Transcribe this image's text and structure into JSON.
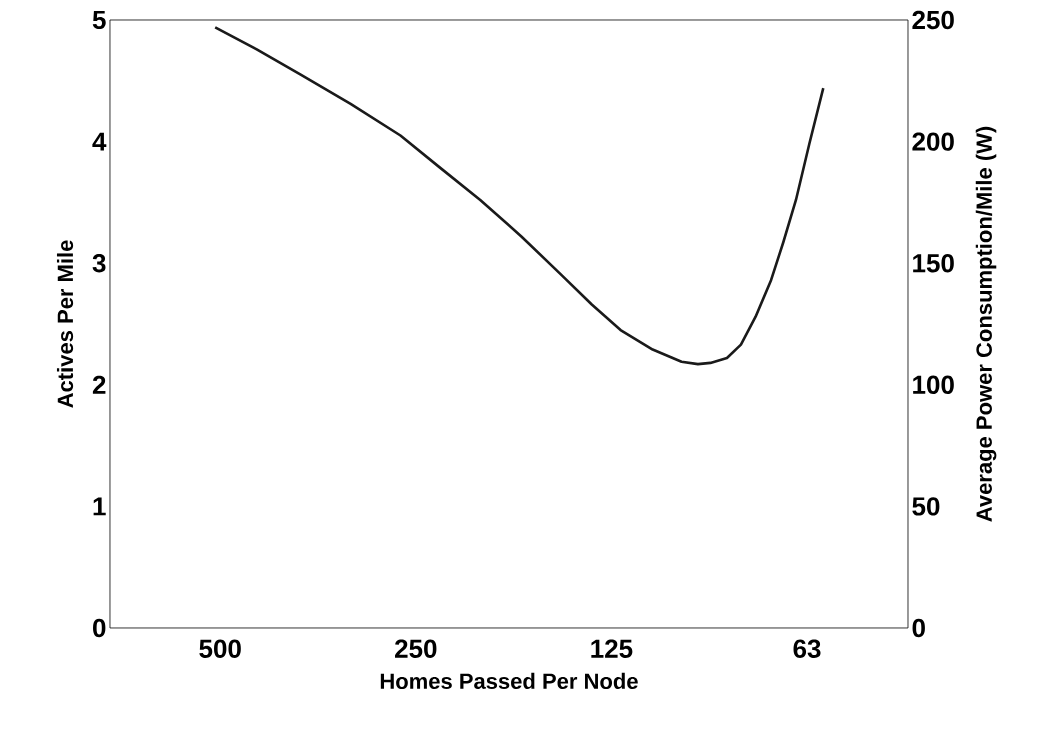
{
  "chart_data": {
    "type": "line",
    "xlabel": "Homes Passed Per Node",
    "ylabel": "Actives Per Mile",
    "y2label": "Average Power Consumption/Mile  (W)",
    "log": "x",
    "xlim": [
      739,
      43.7
    ],
    "xticks": [
      500,
      250,
      125,
      {
        "value": 62.5,
        "label": "63"
      }
    ],
    "ylim": [
      0,
      5
    ],
    "yticks": [
      0,
      1,
      2,
      3,
      4,
      5
    ],
    "y2lim": [
      0,
      250
    ],
    "y2ticks": [
      0,
      50,
      100,
      150,
      200,
      250
    ],
    "series": [
      {
        "color": "#1a1a1a",
        "x": [
          509,
          440,
          376,
          315,
          264,
          230,
          199,
          172,
          149,
          134,
          121,
          108,
          97.5,
          92,
          88,
          83,
          79,
          75,
          71,
          68,
          65,
          62,
          59
        ],
        "values": [
          4.94,
          4.76,
          4.55,
          4.31,
          4.05,
          3.79,
          3.52,
          3.22,
          2.9,
          2.66,
          2.45,
          2.29,
          2.19,
          2.17,
          2.18,
          2.22,
          2.33,
          2.56,
          2.86,
          3.17,
          3.52,
          3.98,
          4.44
        ]
      }
    ]
  }
}
